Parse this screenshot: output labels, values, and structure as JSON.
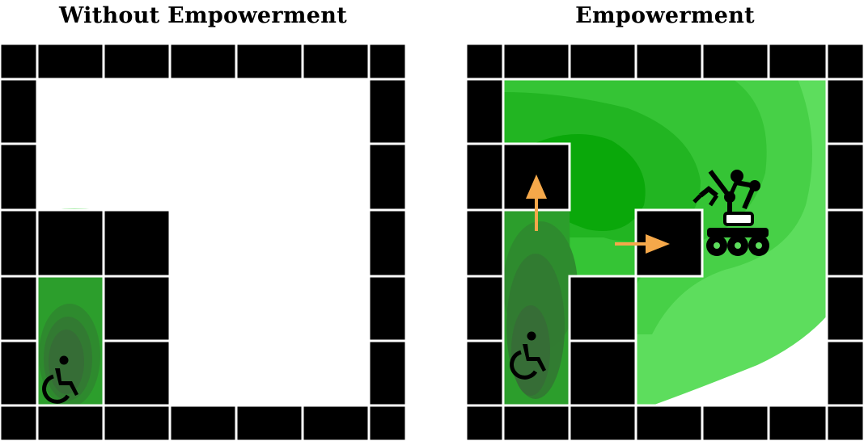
{
  "panels": [
    {
      "title": "Without Empowerment",
      "has_robot": false,
      "has_arrows": false,
      "colors": {
        "wall": "#000000",
        "grout": "#ffffff",
        "floor": "#ffffff"
      }
    },
    {
      "title": "Empowerment",
      "has_robot": true,
      "has_arrows": true,
      "colors": {
        "wall": "#000000",
        "grout": "#ffffff",
        "floor": "#ffffff"
      }
    }
  ],
  "icons": {
    "agent": "wheelchair-user-icon",
    "robot": "mobile-robot-arm-icon",
    "push_arrows": "orange-arrow-icon"
  },
  "palette": {
    "empowerment_light": "#5ddd5d",
    "empowerment_mid": "#2ec42e",
    "empowerment_peak": "#02a802",
    "empowerment_dark": "#2b6b2b",
    "arrow": "#f5a84a"
  }
}
